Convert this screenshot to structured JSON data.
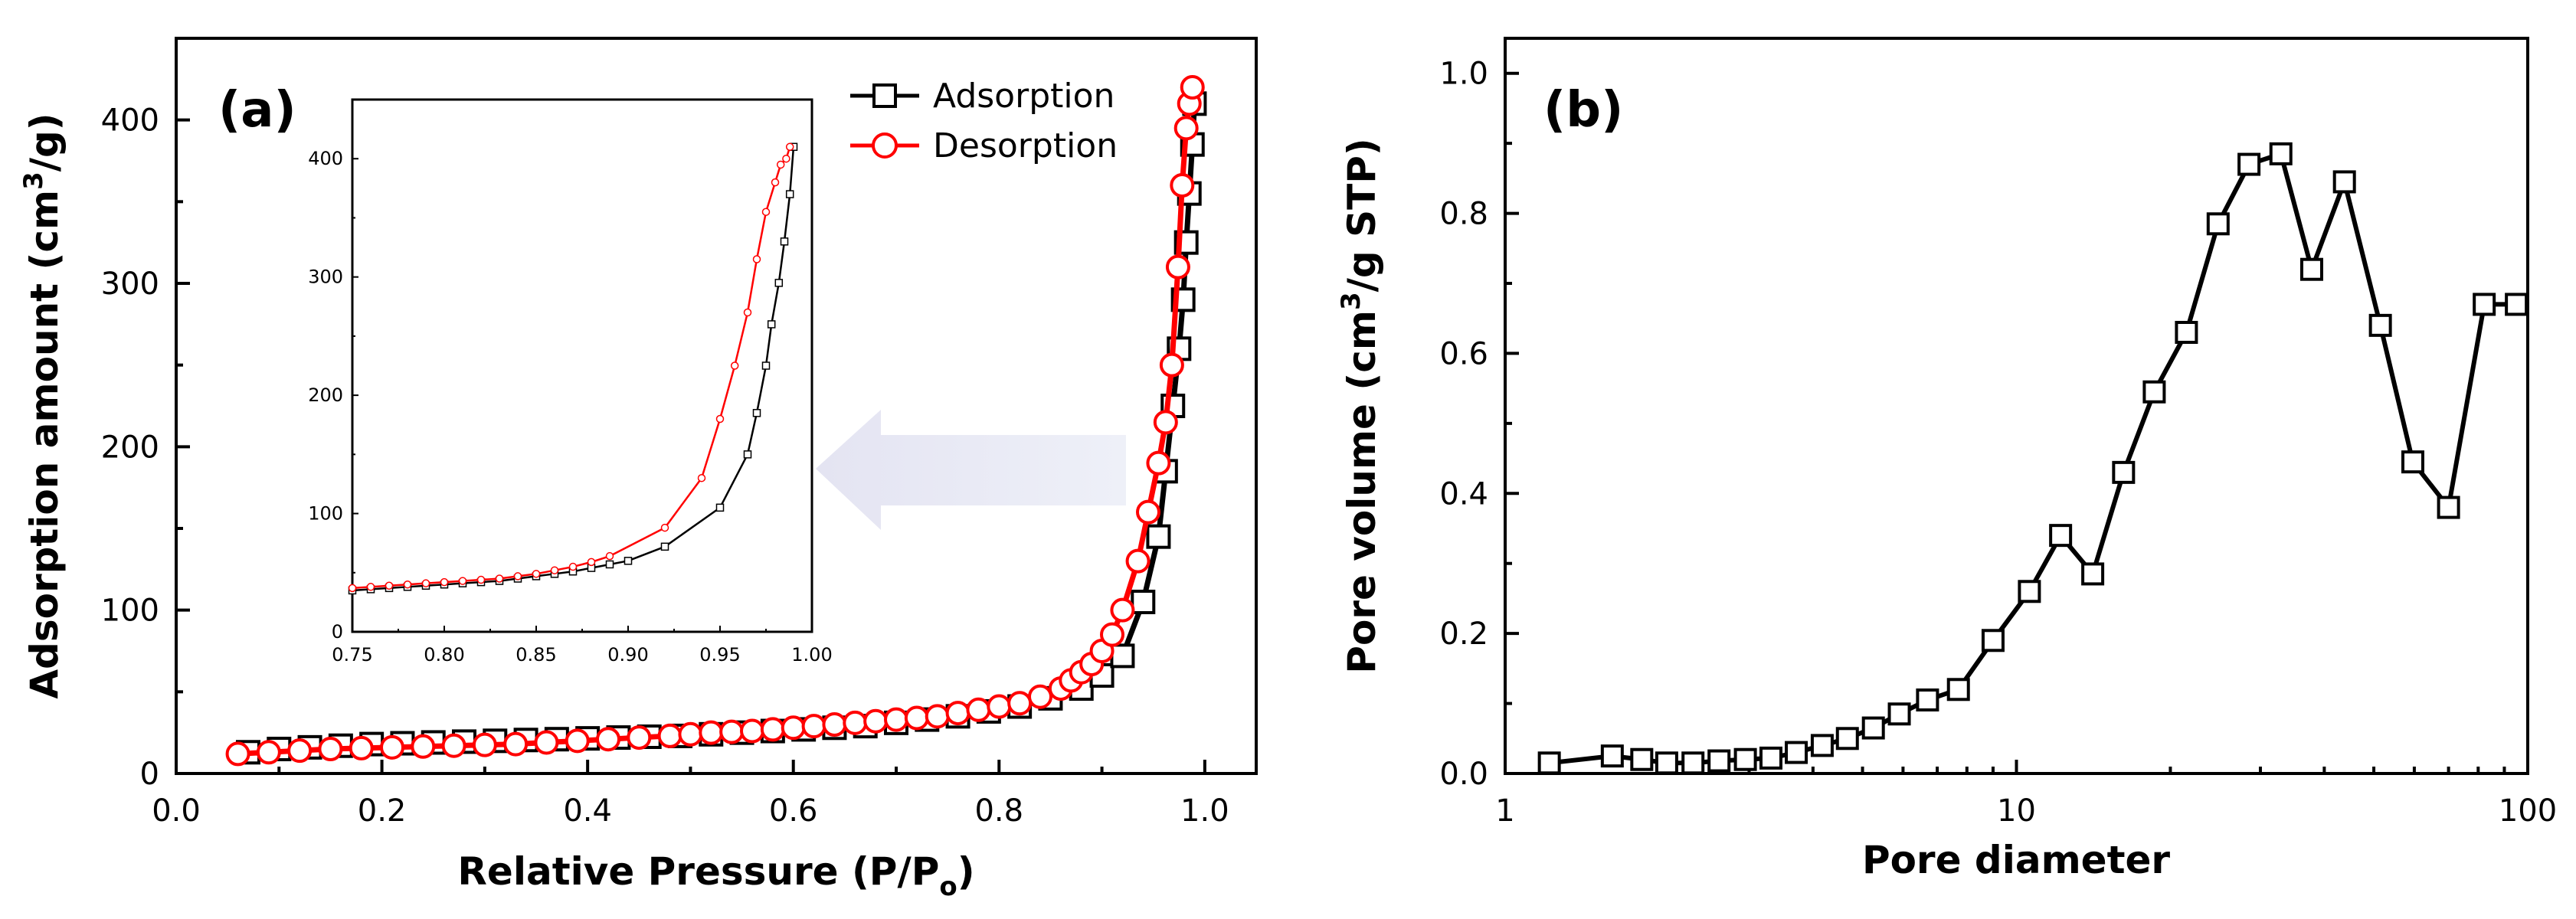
{
  "chart_data": [
    {
      "panel_label": "(a)",
      "type": "line",
      "xlabel": "Relative Pressure (P/P",
      "xlabel_sub": "o",
      "xlabel_close": ")",
      "ylabel": "Adsorption amount (cm",
      "ylabel_sup": "3",
      "ylabel_end": "/g)",
      "xlim": [
        0.0,
        1.05
      ],
      "ylim": [
        0,
        450
      ],
      "xticks": [
        0.0,
        0.2,
        0.4,
        0.6,
        0.8,
        1.0
      ],
      "xtick_labels": [
        "0.0",
        "0.2",
        "0.4",
        "0.6",
        "0.8",
        "1.0"
      ],
      "yticks": [
        0,
        100,
        200,
        300,
        400
      ],
      "ytick_labels": [
        "0",
        "100",
        "200",
        "300",
        "400"
      ],
      "legend_position": "top-right",
      "series": [
        {
          "name": "Adsorption",
          "color": "#000000",
          "marker": "square",
          "x": [
            0.07,
            0.1,
            0.13,
            0.16,
            0.19,
            0.22,
            0.25,
            0.28,
            0.31,
            0.34,
            0.37,
            0.4,
            0.43,
            0.46,
            0.49,
            0.52,
            0.55,
            0.58,
            0.61,
            0.64,
            0.67,
            0.7,
            0.73,
            0.76,
            0.79,
            0.82,
            0.85,
            0.88,
            0.9,
            0.92,
            0.94,
            0.955,
            0.962,
            0.969,
            0.975,
            0.979,
            0.982,
            0.985,
            0.988,
            0.99
          ],
          "y": [
            13,
            15,
            16,
            17,
            18,
            18.5,
            19,
            19.5,
            20,
            20.5,
            21,
            21.5,
            22,
            22.5,
            23,
            24,
            25,
            26,
            27,
            28,
            29,
            31,
            33,
            35,
            38,
            41,
            46,
            52,
            60,
            72,
            105,
            145,
            185,
            225,
            260,
            290,
            325,
            355,
            385,
            410
          ]
        },
        {
          "name": "Desorption",
          "color": "#ff0000",
          "marker": "circle",
          "x": [
            0.06,
            0.09,
            0.12,
            0.15,
            0.18,
            0.21,
            0.24,
            0.27,
            0.3,
            0.33,
            0.36,
            0.39,
            0.42,
            0.45,
            0.48,
            0.5,
            0.52,
            0.54,
            0.56,
            0.58,
            0.6,
            0.62,
            0.64,
            0.66,
            0.68,
            0.7,
            0.72,
            0.74,
            0.76,
            0.78,
            0.8,
            0.82,
            0.84,
            0.86,
            0.87,
            0.88,
            0.89,
            0.9,
            0.91,
            0.92,
            0.935,
            0.945,
            0.955,
            0.962,
            0.968,
            0.974,
            0.978,
            0.982,
            0.985,
            0.988
          ],
          "y": [
            12,
            13,
            14,
            15,
            15.5,
            16,
            16.5,
            17,
            17.5,
            18,
            19,
            20,
            21,
            22,
            23,
            24,
            25,
            25.5,
            26,
            27,
            28,
            29,
            30,
            31,
            32,
            33,
            34,
            35,
            37,
            39,
            41,
            43,
            47,
            52,
            57,
            62,
            67,
            75,
            85,
            100,
            130,
            160,
            190,
            215,
            250,
            310,
            360,
            395,
            410,
            420
          ]
        }
      ],
      "inset": {
        "xlim": [
          0.75,
          1.0
        ],
        "ylim": [
          0,
          450
        ],
        "xticks": [
          0.75,
          0.8,
          0.85,
          0.9,
          0.95,
          1.0
        ],
        "xtick_labels": [
          "0.75",
          "0.80",
          "0.85",
          "0.90",
          "0.95",
          "1.00"
        ],
        "yticks": [
          0,
          100,
          200,
          300,
          400
        ],
        "ytick_labels": [
          "0",
          "100",
          "200",
          "300",
          "400"
        ],
        "series": [
          {
            "name": "Adsorption",
            "color": "#000000",
            "marker": "square",
            "x": [
              0.75,
              0.76,
              0.77,
              0.78,
              0.79,
              0.8,
              0.81,
              0.82,
              0.83,
              0.84,
              0.85,
              0.86,
              0.87,
              0.88,
              0.89,
              0.9,
              0.92,
              0.95,
              0.965,
              0.97,
              0.975,
              0.978,
              0.982,
              0.985,
              0.988,
              0.99
            ],
            "y": [
              35,
              36,
              37,
              38,
              39,
              40,
              41,
              42,
              43,
              45,
              47,
              49,
              51,
              54,
              57,
              60,
              72,
              105,
              150,
              185,
              225,
              260,
              295,
              330,
              370,
              410
            ]
          },
          {
            "name": "Desorption",
            "color": "#ff0000",
            "marker": "circle",
            "x": [
              0.75,
              0.76,
              0.77,
              0.78,
              0.79,
              0.8,
              0.81,
              0.82,
              0.83,
              0.84,
              0.85,
              0.86,
              0.87,
              0.88,
              0.89,
              0.92,
              0.94,
              0.95,
              0.958,
              0.965,
              0.97,
              0.975,
              0.98,
              0.983,
              0.986,
              0.988
            ],
            "y": [
              37,
              38,
              39,
              40,
              41,
              42,
              43,
              44,
              45,
              47,
              49,
              52,
              55,
              59,
              64,
              88,
              130,
              180,
              225,
              270,
              315,
              355,
              380,
              395,
              400,
              410
            ]
          }
        ]
      },
      "annotation": "arrow pointing from the capillary-condensation region of the main plot to the inset"
    },
    {
      "panel_label": "(b)",
      "type": "line",
      "xlabel": "Pore diameter",
      "ylabel": "Pore volume (cm",
      "ylabel_sup": "3",
      "ylabel_end": "/g STP)",
      "xscale": "log",
      "xlim": [
        1,
        100
      ],
      "ylim": [
        0,
        1.05
      ],
      "xticks": [
        1,
        10,
        100
      ],
      "xtick_labels": [
        "1",
        "10",
        "100"
      ],
      "yticks": [
        0.0,
        0.2,
        0.4,
        0.6,
        0.8,
        1.0
      ],
      "ytick_labels": [
        "0.0",
        "0.2",
        "0.4",
        "0.6",
        "0.8",
        "1.0"
      ],
      "series": [
        {
          "color": "#000000",
          "marker": "square",
          "x": [
            1.22,
            1.62,
            1.85,
            2.07,
            2.33,
            2.62,
            2.95,
            3.31,
            3.71,
            4.17,
            4.67,
            5.25,
            5.9,
            6.7,
            7.7,
            9.0,
            10.6,
            12.2,
            14.1,
            16.2,
            18.6,
            21.5,
            24.8,
            28.5,
            32.9,
            37.8,
            43.8,
            51.5,
            59.6,
            70.0,
            82.2,
            95.0
          ],
          "y": [
            0.015,
            0.025,
            0.02,
            0.015,
            0.015,
            0.018,
            0.02,
            0.022,
            0.03,
            0.04,
            0.05,
            0.065,
            0.085,
            0.105,
            0.12,
            0.19,
            0.26,
            0.34,
            0.285,
            0.43,
            0.545,
            0.63,
            0.785,
            0.87,
            0.885,
            0.72,
            0.845,
            0.64,
            0.445,
            0.38,
            0.67,
            0.67
          ]
        }
      ]
    }
  ]
}
